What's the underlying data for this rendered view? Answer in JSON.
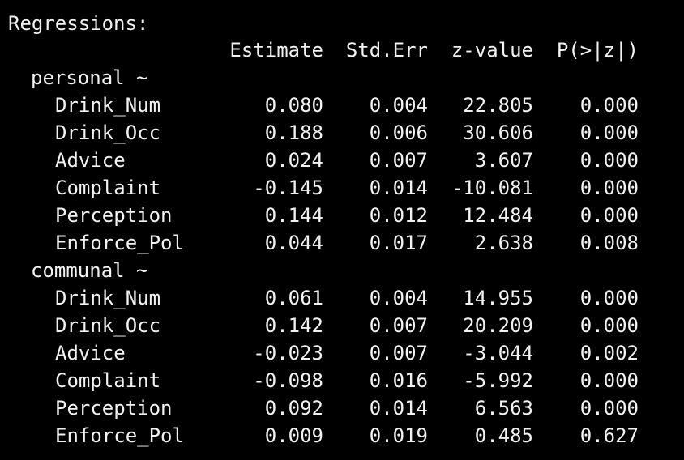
{
  "title": "Regressions:",
  "columns": {
    "estimate": "Estimate",
    "std_err": "Std.Err",
    "z_value": "z-value",
    "p_value": "P(>|z|)"
  },
  "groups": [
    {
      "label": "personal ~",
      "rows": [
        {
          "name": "Drink_Num",
          "estimate": "0.080",
          "std_err": "0.004",
          "z_value": "22.805",
          "p_value": "0.000"
        },
        {
          "name": "Drink_Occ",
          "estimate": "0.188",
          "std_err": "0.006",
          "z_value": "30.606",
          "p_value": "0.000"
        },
        {
          "name": "Advice",
          "estimate": "0.024",
          "std_err": "0.007",
          "z_value": "3.607",
          "p_value": "0.000"
        },
        {
          "name": "Complaint",
          "estimate": "-0.145",
          "std_err": "0.014",
          "z_value": "-10.081",
          "p_value": "0.000"
        },
        {
          "name": "Perception",
          "estimate": "0.144",
          "std_err": "0.012",
          "z_value": "12.484",
          "p_value": "0.000"
        },
        {
          "name": "Enforce_Pol",
          "estimate": "0.044",
          "std_err": "0.017",
          "z_value": "2.638",
          "p_value": "0.008"
        }
      ]
    },
    {
      "label": "communal ~",
      "rows": [
        {
          "name": "Drink_Num",
          "estimate": "0.061",
          "std_err": "0.004",
          "z_value": "14.955",
          "p_value": "0.000"
        },
        {
          "name": "Drink_Occ",
          "estimate": "0.142",
          "std_err": "0.007",
          "z_value": "20.209",
          "p_value": "0.000"
        },
        {
          "name": "Advice",
          "estimate": "-0.023",
          "std_err": "0.007",
          "z_value": "-3.044",
          "p_value": "0.002"
        },
        {
          "name": "Complaint",
          "estimate": "-0.098",
          "std_err": "0.016",
          "z_value": "-5.992",
          "p_value": "0.000"
        },
        {
          "name": "Perception",
          "estimate": "0.092",
          "std_err": "0.014",
          "z_value": "6.563",
          "p_value": "0.000"
        },
        {
          "name": "Enforce_Pol",
          "estimate": "0.009",
          "std_err": "0.019",
          "z_value": "0.485",
          "p_value": "0.627"
        }
      ]
    }
  ],
  "colors": {
    "background": "#000000",
    "text": "#f2f2f2"
  }
}
